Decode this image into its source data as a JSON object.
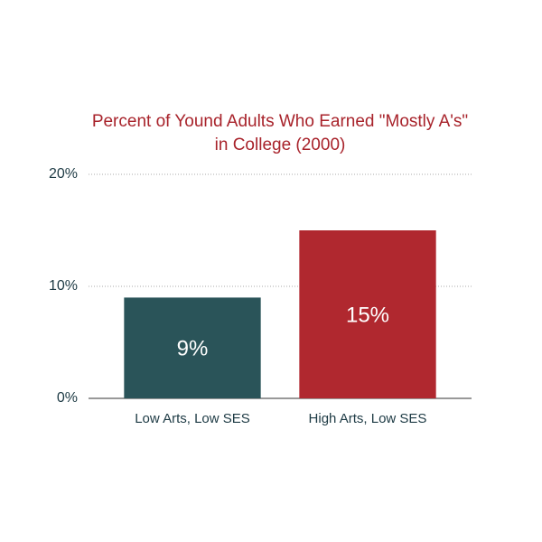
{
  "chart_data": {
    "type": "bar",
    "title": "Percent of Yound Adults Who Earned \"Mostly A's\" in College (2000)",
    "categories": [
      "Low Arts, Low SES",
      "High Arts, Low SES"
    ],
    "values": [
      9,
      15
    ],
    "value_labels": [
      "9%",
      "15%"
    ],
    "colors": [
      "#2a5459",
      "#b0282f"
    ],
    "ylim": [
      0,
      20
    ],
    "yticks": [
      {
        "value": 0,
        "label": "0%"
      },
      {
        "value": 10,
        "label": "10%"
      },
      {
        "value": 20,
        "label": "20%"
      }
    ],
    "grid": true
  }
}
